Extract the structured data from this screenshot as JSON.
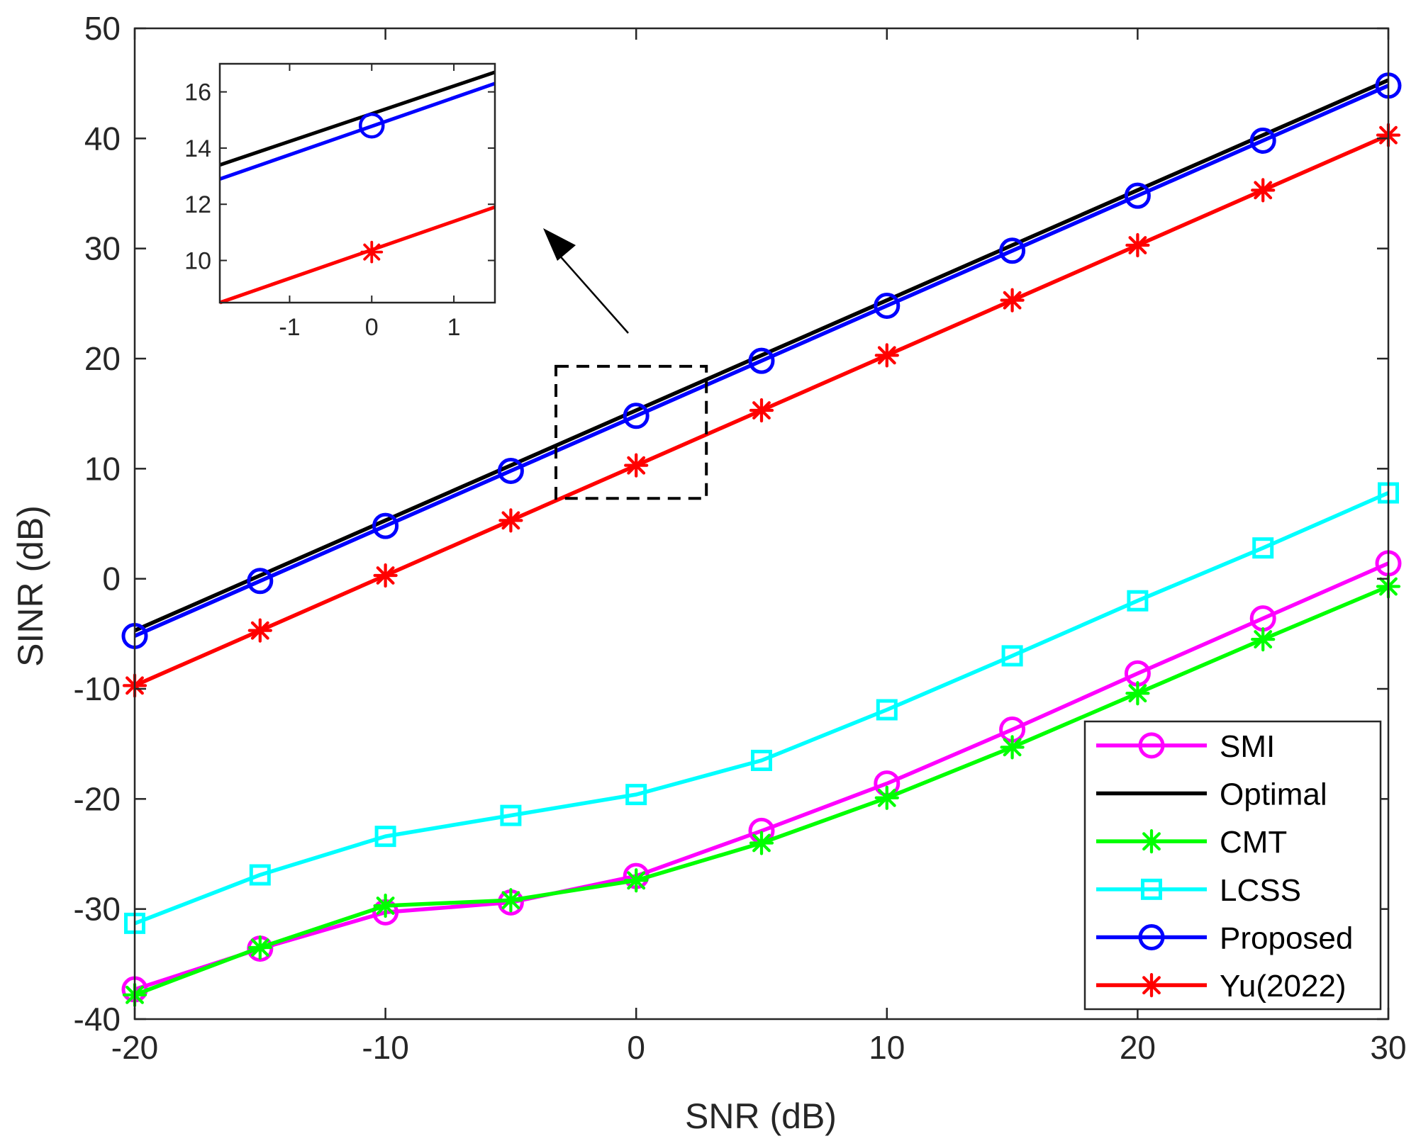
{
  "chart_data": {
    "type": "line",
    "title": "",
    "xlabel": "SNR (dB)",
    "ylabel": "SINR (dB)",
    "xlim": [
      -20,
      30
    ],
    "ylim": [
      -40,
      50
    ],
    "xticks": [
      -20,
      -10,
      0,
      10,
      20,
      30
    ],
    "yticks": [
      -40,
      -30,
      -20,
      -10,
      0,
      10,
      20,
      30,
      40,
      50
    ],
    "x": [
      -20,
      -15,
      -10,
      -5,
      0,
      5,
      10,
      15,
      20,
      25,
      30
    ],
    "series": [
      {
        "name": "SMI",
        "color": "#ff00ff",
        "marker": "circle",
        "values": [
          -37.3,
          -33.6,
          -30.3,
          -29.4,
          -27.0,
          -22.9,
          -18.6,
          -13.7,
          -8.6,
          -3.6,
          1.4
        ]
      },
      {
        "name": "Optimal",
        "color": "#000000",
        "marker": "none",
        "values": [
          -4.7,
          0.3,
          5.3,
          10.3,
          15.3,
          20.3,
          25.3,
          30.3,
          35.3,
          40.3,
          45.3
        ]
      },
      {
        "name": "CMT",
        "color": "#00ff00",
        "marker": "asterisk",
        "values": [
          -37.8,
          -33.5,
          -29.7,
          -29.2,
          -27.4,
          -24.0,
          -19.9,
          -15.3,
          -10.4,
          -5.5,
          -0.7
        ]
      },
      {
        "name": "LCSS",
        "color": "#00ffff",
        "marker": "square",
        "values": [
          -31.3,
          -26.9,
          -23.4,
          -21.5,
          -19.6,
          -16.5,
          -11.9,
          -7.0,
          -2.0,
          2.8,
          7.8
        ]
      },
      {
        "name": "Proposed",
        "color": "#0000ff",
        "marker": "circle",
        "values": [
          -5.2,
          -0.2,
          4.8,
          9.8,
          14.8,
          19.8,
          24.8,
          29.8,
          34.8,
          39.8,
          44.8
        ]
      },
      {
        "name": "Yu(2022)",
        "color": "#ff0000",
        "marker": "asterisk",
        "values": [
          -9.7,
          -4.7,
          0.3,
          5.3,
          10.3,
          15.3,
          20.3,
          25.3,
          30.3,
          35.3,
          40.3
        ]
      }
    ],
    "legend": {
      "placement": "bottom-right"
    },
    "zoom_region": {
      "xlim": [
        -3.2,
        2.8
      ],
      "ylim": [
        7.3,
        19.3
      ]
    },
    "inset": {
      "xlim": [
        -1.85,
        1.5
      ],
      "ylim": [
        8.5,
        17.0
      ],
      "xticks": [
        -1,
        0,
        1
      ],
      "yticks": [
        10,
        12,
        14,
        16
      ],
      "series": [
        {
          "name": "Optimal",
          "color": "#000000",
          "marker": "none",
          "points": [
            [
              -1.85,
              13.4
            ],
            [
              1.5,
              16.7
            ]
          ]
        },
        {
          "name": "Proposed",
          "color": "#0000ff",
          "marker": "none",
          "points": [
            [
              -1.85,
              12.9
            ],
            [
              1.5,
              16.3
            ]
          ]
        },
        {
          "name": "Proposed",
          "color": "#0000ff",
          "marker": "circle",
          "points": [
            [
              0,
              14.8
            ]
          ]
        },
        {
          "name": "Yu(2022)",
          "color": "#ff0000",
          "marker": "none",
          "points": [
            [
              -1.85,
              8.5
            ],
            [
              1.5,
              11.9
            ]
          ]
        },
        {
          "name": "Yu(2022)",
          "color": "#ff0000",
          "marker": "asterisk",
          "points": [
            [
              0,
              10.3
            ]
          ]
        }
      ]
    }
  }
}
